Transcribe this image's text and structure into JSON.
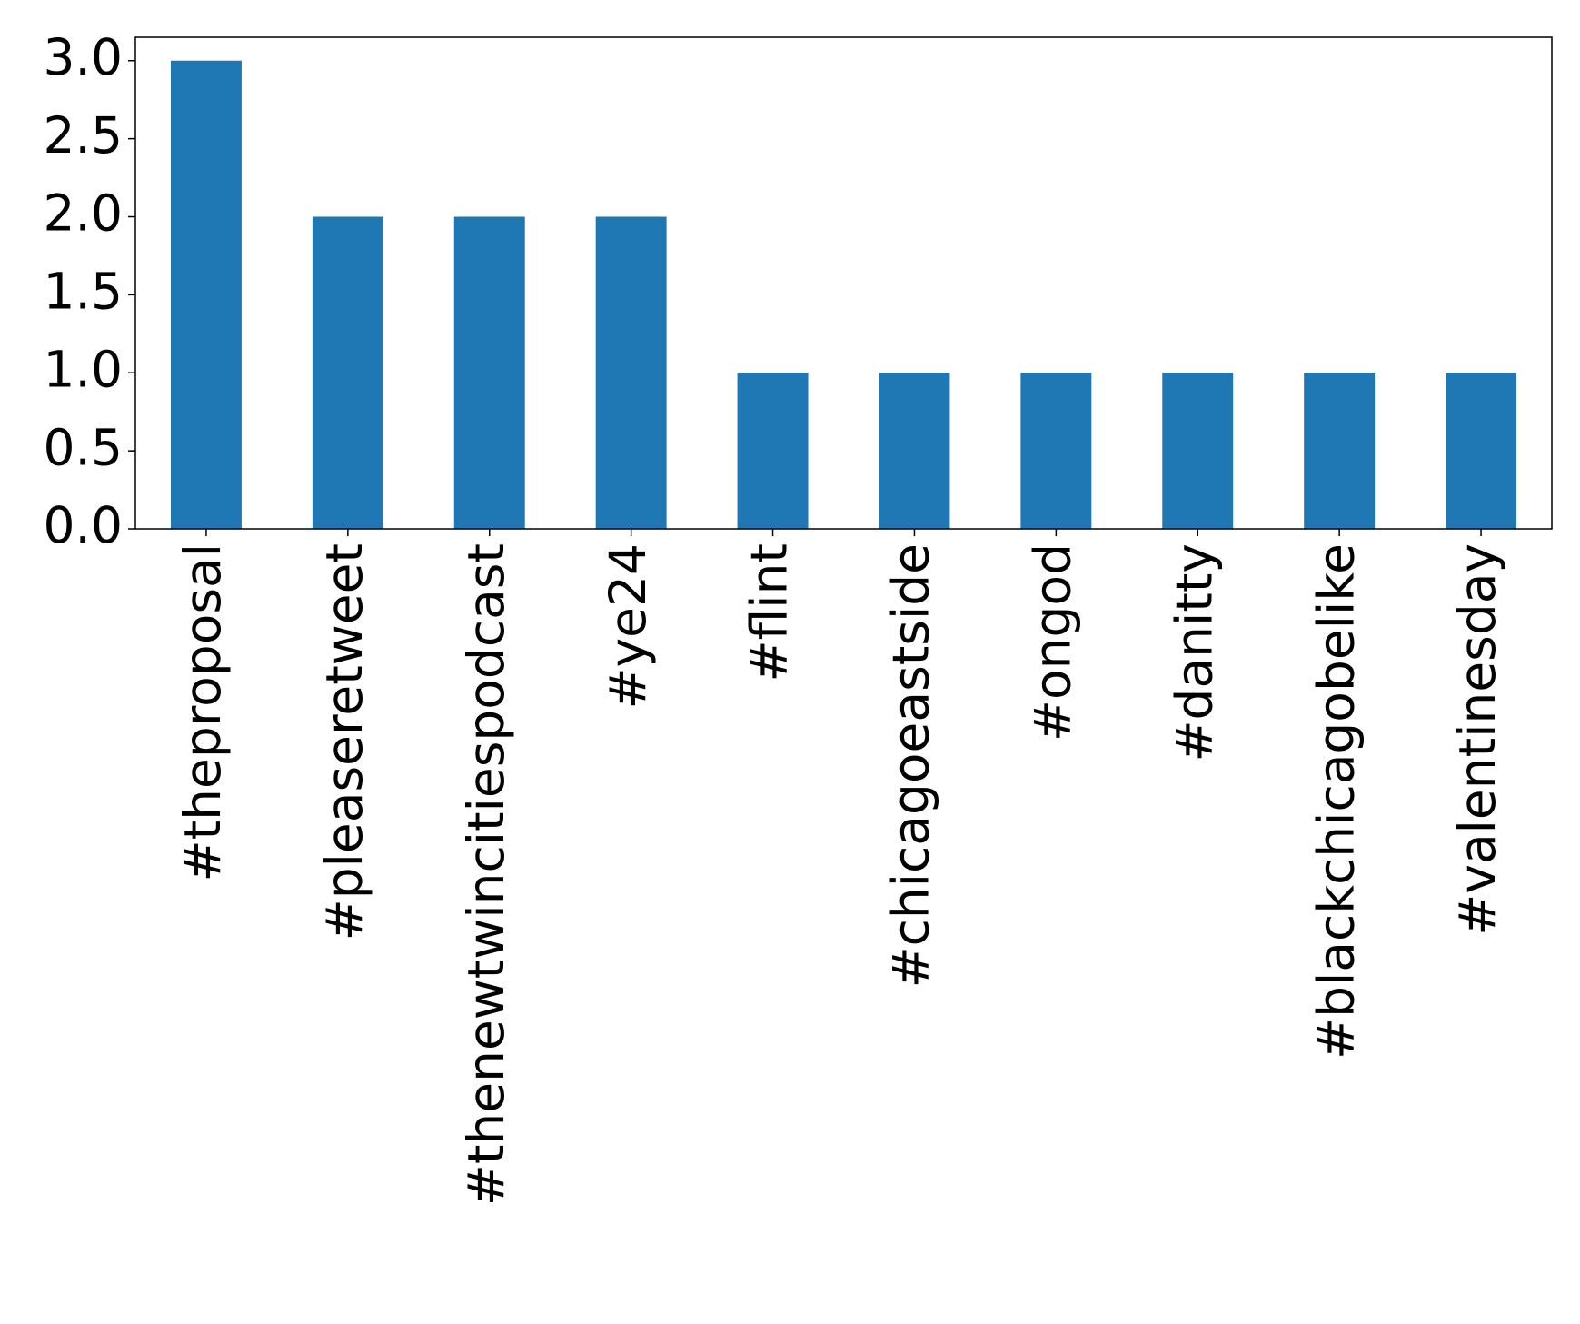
{
  "chart_data": {
    "type": "bar",
    "categories": [
      "#theproposal",
      "#pleaseretweet",
      "#thenewtwincitiespodcast",
      "#ye24",
      "#flint",
      "#chicagoeastside",
      "#ongod",
      "#danitty",
      "#blackchicagobelike",
      "#valentinesday"
    ],
    "values": [
      3,
      2,
      2,
      2,
      1,
      1,
      1,
      1,
      1,
      1
    ],
    "color": "#1f77b4",
    "ylim": [
      0,
      3.15
    ],
    "yticks": [
      {
        "value": 0,
        "label": "0.0"
      },
      0.5,
      {
        "value": 1,
        "label": "1.0"
      },
      1.5,
      {
        "value": 2,
        "label": "2.0"
      },
      2.5,
      {
        "value": 3,
        "label": "3.0"
      }
    ],
    "grid": false
  }
}
